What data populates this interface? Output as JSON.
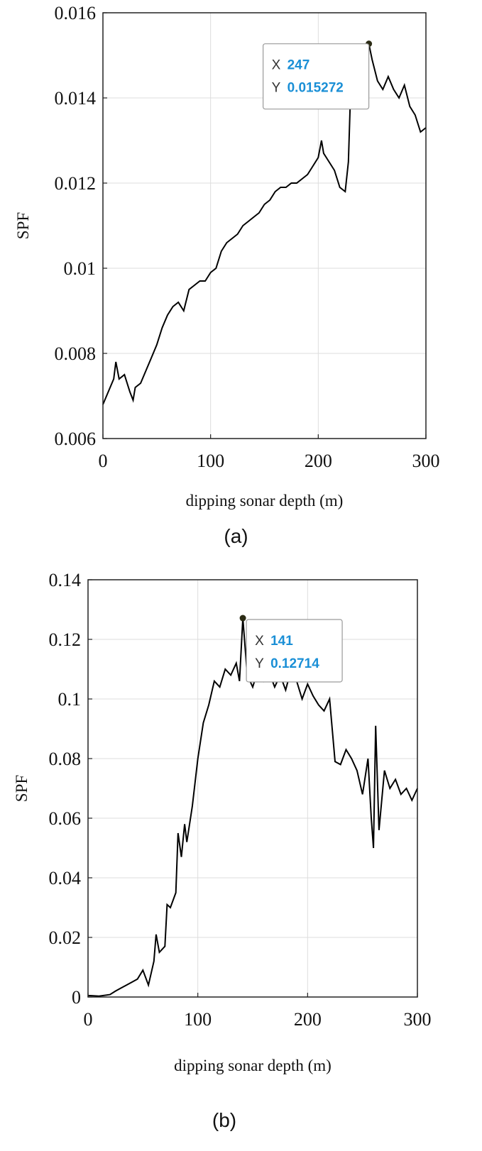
{
  "chart_data": [
    {
      "type": "line",
      "panel_label": "(a)",
      "xlabel": "dipping sonar depth (m)",
      "ylabel": "SPF",
      "xlim": [
        0,
        300
      ],
      "ylim": [
        0.006,
        0.016
      ],
      "xticks": [
        0,
        100,
        200,
        300
      ],
      "xtick_labels": [
        "0",
        "100",
        "200",
        "300"
      ],
      "yticks": [
        0.006,
        0.008,
        0.01,
        0.012,
        0.014,
        0.016
      ],
      "ytick_labels": [
        "0.006",
        "0.008",
        "0.01",
        "0.012",
        "0.014",
        "0.016"
      ],
      "grid": true,
      "series": [
        {
          "x": [
            0,
            5,
            10,
            12,
            15,
            20,
            25,
            28,
            30,
            35,
            40,
            45,
            50,
            55,
            60,
            65,
            70,
            75,
            80,
            85,
            90,
            95,
            100,
            105,
            110,
            115,
            120,
            125,
            130,
            135,
            140,
            145,
            150,
            155,
            160,
            165,
            170,
            175,
            180,
            185,
            190,
            195,
            200,
            203,
            205,
            210,
            215,
            220,
            225,
            228,
            230,
            235,
            240,
            245,
            247,
            250,
            255,
            260,
            265,
            270,
            275,
            280,
            285,
            290,
            295,
            300
          ],
          "values": [
            0.0068,
            0.0071,
            0.0074,
            0.0078,
            0.0074,
            0.0075,
            0.0071,
            0.0069,
            0.0072,
            0.0073,
            0.0076,
            0.0079,
            0.0082,
            0.0086,
            0.0089,
            0.0091,
            0.0092,
            0.009,
            0.0095,
            0.0096,
            0.0097,
            0.0097,
            0.0099,
            0.01,
            0.0104,
            0.0106,
            0.0107,
            0.0108,
            0.011,
            0.0111,
            0.0112,
            0.0113,
            0.0115,
            0.0116,
            0.0118,
            0.0119,
            0.0119,
            0.012,
            0.012,
            0.0121,
            0.0122,
            0.0124,
            0.0126,
            0.013,
            0.0127,
            0.0125,
            0.0123,
            0.0119,
            0.0118,
            0.0125,
            0.0141,
            0.0144,
            0.0148,
            0.0149,
            0.015272,
            0.0149,
            0.0144,
            0.0142,
            0.0145,
            0.0142,
            0.014,
            0.0143,
            0.0138,
            0.0136,
            0.0132,
            0.0133
          ]
        }
      ],
      "datatip": {
        "x_key": "X",
        "x_value": "247",
        "y_key": "Y",
        "y_value": "0.015272",
        "x": 247,
        "y": 0.015272
      }
    },
    {
      "type": "line",
      "panel_label": "(b)",
      "xlabel": "dipping sonar depth (m)",
      "ylabel": "SPF",
      "xlim": [
        0,
        300
      ],
      "ylim": [
        0,
        0.14
      ],
      "xticks": [
        0,
        100,
        200,
        300
      ],
      "xtick_labels": [
        "0",
        "100",
        "200",
        "300"
      ],
      "yticks": [
        0,
        0.02,
        0.04,
        0.06,
        0.08,
        0.1,
        0.12,
        0.14
      ],
      "ytick_labels": [
        "0",
        "0.02",
        "0.04",
        "0.06",
        "0.08",
        "0.1",
        "0.12",
        "0.14"
      ],
      "grid": true,
      "series": [
        {
          "x": [
            0,
            10,
            20,
            25,
            30,
            35,
            40,
            45,
            50,
            55,
            60,
            62,
            65,
            70,
            72,
            75,
            80,
            82,
            85,
            88,
            90,
            95,
            100,
            105,
            110,
            115,
            120,
            125,
            130,
            135,
            138,
            141,
            145,
            150,
            155,
            160,
            165,
            170,
            175,
            180,
            185,
            190,
            195,
            200,
            205,
            210,
            215,
            220,
            225,
            230,
            235,
            240,
            245,
            250,
            255,
            258,
            260,
            262,
            265,
            270,
            275,
            280,
            285,
            290,
            295,
            300
          ],
          "values": [
            0.0005,
            0.0003,
            0.0008,
            0.002,
            0.003,
            0.004,
            0.005,
            0.006,
            0.009,
            0.004,
            0.012,
            0.021,
            0.015,
            0.017,
            0.031,
            0.03,
            0.035,
            0.055,
            0.047,
            0.058,
            0.052,
            0.064,
            0.08,
            0.092,
            0.098,
            0.106,
            0.104,
            0.11,
            0.108,
            0.112,
            0.106,
            0.12714,
            0.108,
            0.104,
            0.11,
            0.106,
            0.109,
            0.104,
            0.108,
            0.103,
            0.11,
            0.106,
            0.1,
            0.105,
            0.101,
            0.098,
            0.096,
            0.1,
            0.079,
            0.078,
            0.083,
            0.08,
            0.076,
            0.068,
            0.08,
            0.06,
            0.05,
            0.091,
            0.056,
            0.076,
            0.07,
            0.073,
            0.068,
            0.07,
            0.066,
            0.07
          ]
        }
      ],
      "datatip": {
        "x_key": "X",
        "x_value": "141",
        "y_key": "Y",
        "y_value": "0.12714",
        "x": 141,
        "y": 0.12714
      }
    }
  ],
  "colors": {
    "line": "#000000",
    "grid": "#dddddd",
    "axis": "#222222",
    "tip_value": "#1a8fd6",
    "tip_border": "#9a9a9a",
    "marker": "#2b2b14"
  }
}
